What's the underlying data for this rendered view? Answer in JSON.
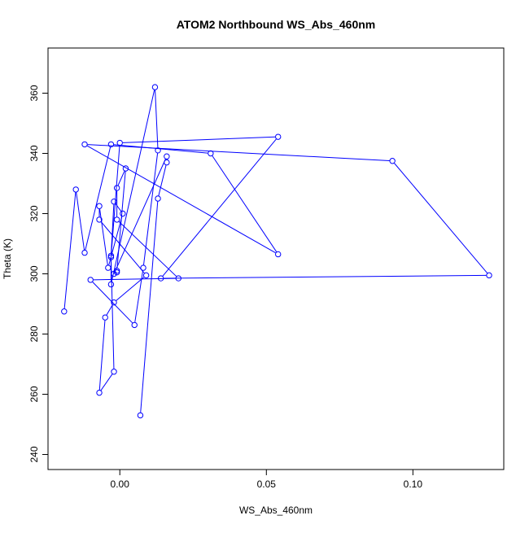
{
  "chart_data": {
    "type": "line",
    "title": "ATOM2 Northbound WS_Abs_460nm",
    "xlabel": "WS_Abs_460nm",
    "ylabel": "Theta (K)",
    "xlim": [
      -0.0245,
      0.131
    ],
    "ylim": [
      235,
      375
    ],
    "x_ticks": [
      0.0,
      0.05,
      0.1
    ],
    "x_tick_labels": [
      "0.00",
      "0.05",
      "0.10"
    ],
    "y_ticks": [
      240,
      260,
      280,
      300,
      320,
      340,
      360
    ],
    "y_tick_labels": [
      "240",
      "260",
      "280",
      "300",
      "320",
      "340",
      "360"
    ],
    "grid": false,
    "legend": "none",
    "marker": "open-circle",
    "color": "#0000ff",
    "series": [
      {
        "x": [
          -0.019,
          -0.015,
          -0.012,
          -0.003,
          0.031,
          0.054,
          -0.012,
          0.093,
          0.126,
          0.014,
          0.054,
          0.0,
          -0.003,
          -0.002,
          -0.007,
          -0.005,
          -0.002,
          0.009,
          -0.007,
          -0.007,
          -0.004,
          0.001,
          -0.002,
          -0.003,
          -0.003,
          0.012,
          0.013,
          0.008,
          0.005,
          -0.01,
          0.02,
          -0.001,
          -0.001,
          0.002,
          -0.001,
          -0.001,
          -0.002,
          0.016,
          0.016,
          0.013,
          0.007
        ],
        "y": [
          287.5,
          328.0,
          307.0,
          343.0,
          340.0,
          306.5,
          343.0,
          337.5,
          299.5,
          298.5,
          345.5,
          343.5,
          305.5,
          267.5,
          260.5,
          285.5,
          290.5,
          299.5,
          318.0,
          322.5,
          302.0,
          320.0,
          324.0,
          306.0,
          296.5,
          362.0,
          341.0,
          302.0,
          283.0,
          298.0,
          298.5,
          318.0,
          328.5,
          335.0,
          301.0,
          300.5,
          300.0,
          339.0,
          337.0,
          325.0,
          253.0
        ]
      }
    ]
  }
}
